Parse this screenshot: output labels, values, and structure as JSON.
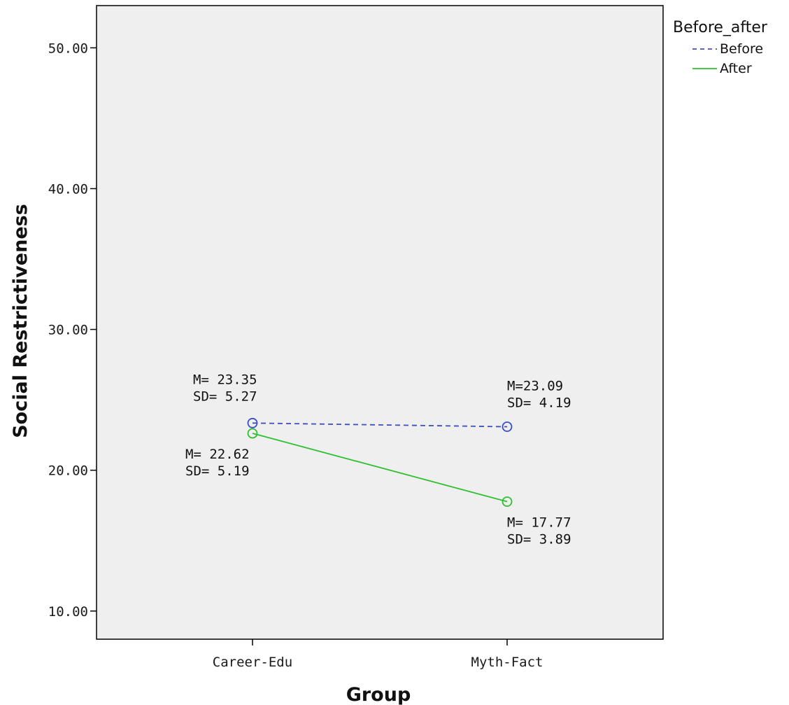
{
  "chart_data": {
    "type": "line",
    "title": "",
    "xlabel": "Group",
    "ylabel": "Social Restrictiveness",
    "categories": [
      "Career-Edu",
      "Myth-Fact"
    ],
    "ylim": [
      8,
      53
    ],
    "y_ticks": [
      10,
      20,
      30,
      40,
      50
    ],
    "y_tick_labels": [
      "10.00",
      "20.00",
      "30.00",
      "40.00",
      "50.00"
    ],
    "grid": false,
    "plot_background": "#efefef",
    "legend": {
      "title": "Before_after",
      "placement": "outside-top-right",
      "entries": [
        "Before",
        "After"
      ]
    },
    "series": [
      {
        "name": "Before",
        "values": [
          23.35,
          23.09
        ],
        "color": "#3b4fc4",
        "line_style": "dashed",
        "marker": "open-circle",
        "annotations": [
          {
            "lines": [
              "M= 23.35",
              "SD= 5.27"
            ]
          },
          {
            "lines": [
              "M=23.09",
              "SD= 4.19"
            ]
          }
        ]
      },
      {
        "name": "After",
        "values": [
          22.62,
          17.77
        ],
        "color": "#2fbf2f",
        "line_style": "solid",
        "marker": "open-circle",
        "annotations": [
          {
            "lines": [
              "M= 22.62",
              "SD= 5.19"
            ]
          },
          {
            "lines": [
              "M= 17.77",
              "SD= 3.89"
            ]
          }
        ]
      }
    ]
  }
}
